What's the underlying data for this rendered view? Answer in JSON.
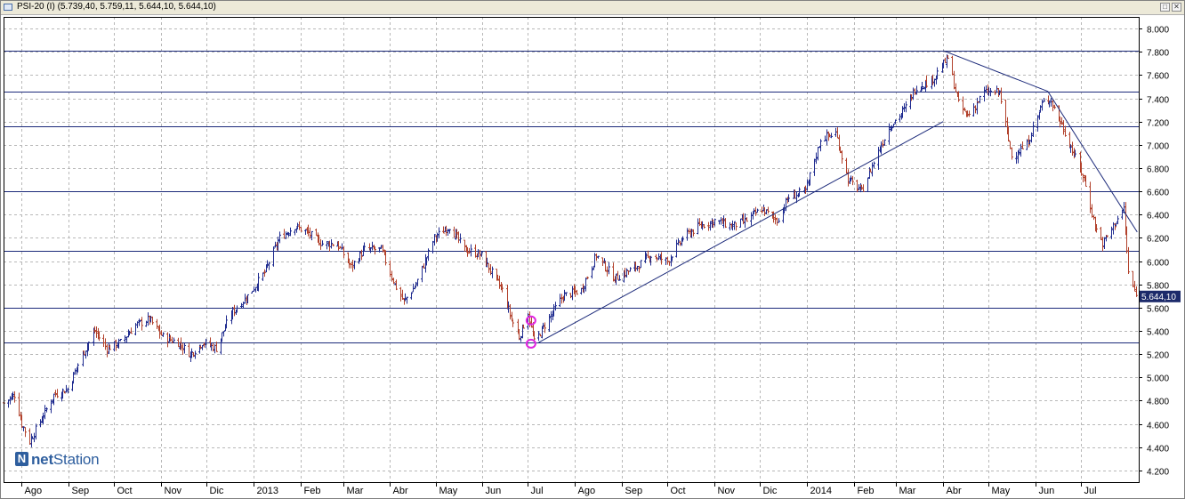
{
  "window": {
    "title": "PSI-20 (I) (5.739,40, 5.759,11, 5.644,10, 5.644,10)",
    "restore_glyph": "□",
    "close_glyph": "✕"
  },
  "logo": {
    "prefix": "net",
    "suffix": "Station"
  },
  "colors": {
    "grid": "#b8b8b8",
    "trend": "#1c2a7a",
    "bar_up": "#1f2b8f",
    "bar_down": "#b2412b",
    "marker": "#e024e0",
    "frame": "#000000"
  },
  "chart_data": {
    "type": "ohlc",
    "title": "PSI-20 (I)",
    "last_value_label": "5.644,10",
    "y_axis": {
      "min": 4100,
      "max": 8100,
      "ticks": [
        4200,
        4400,
        4600,
        4800,
        5000,
        5200,
        5400,
        5600,
        5800,
        6000,
        6200,
        6400,
        6600,
        6800,
        7000,
        7200,
        7400,
        7600,
        7800,
        8000
      ],
      "tick_labels": [
        "4.200",
        "4.400",
        "4.600",
        "4.800",
        "5.000",
        "5.200",
        "5.400",
        "5.600",
        "5.800",
        "6.000",
        "6.200",
        "6.400",
        "6.600",
        "6.800",
        "7.000",
        "7.200",
        "7.400",
        "7.600",
        "7.800",
        "8.000"
      ]
    },
    "x_axis": {
      "start": "2012-07-20",
      "end": "2014-08-08",
      "months": [
        {
          "label": "Ago",
          "date": "2012-08-01"
        },
        {
          "label": "Sep",
          "date": "2012-09-01"
        },
        {
          "label": "Oct",
          "date": "2012-10-01"
        },
        {
          "label": "Nov",
          "date": "2012-11-01"
        },
        {
          "label": "Dic",
          "date": "2012-12-01"
        },
        {
          "label": "2013",
          "date": "2013-01-01"
        },
        {
          "label": "Feb",
          "date": "2013-02-01"
        },
        {
          "label": "Mar",
          "date": "2013-03-01"
        },
        {
          "label": "Abr",
          "date": "2013-04-01"
        },
        {
          "label": "May",
          "date": "2013-05-01"
        },
        {
          "label": "Jun",
          "date": "2013-06-01"
        },
        {
          "label": "Jul",
          "date": "2013-07-01"
        },
        {
          "label": "Ago",
          "date": "2013-08-01"
        },
        {
          "label": "Sep",
          "date": "2013-09-01"
        },
        {
          "label": "Oct",
          "date": "2013-10-01"
        },
        {
          "label": "Nov",
          "date": "2013-11-01"
        },
        {
          "label": "Dic",
          "date": "2013-12-01"
        },
        {
          "label": "2014",
          "date": "2014-01-01"
        },
        {
          "label": "Feb",
          "date": "2014-02-01"
        },
        {
          "label": "Mar",
          "date": "2014-03-01"
        },
        {
          "label": "Abr",
          "date": "2014-04-01"
        },
        {
          "label": "May",
          "date": "2014-05-01"
        },
        {
          "label": "Jun",
          "date": "2014-06-01"
        },
        {
          "label": "Jul",
          "date": "2014-07-01"
        }
      ]
    },
    "close_path": [
      [
        "2012-07-20",
        4780
      ],
      [
        "2012-07-27",
        4850
      ],
      [
        "2012-08-01",
        4600
      ],
      [
        "2012-08-06",
        4450
      ],
      [
        "2012-08-14",
        4650
      ],
      [
        "2012-08-22",
        4850
      ],
      [
        "2012-08-31",
        4900
      ],
      [
        "2012-09-10",
        5200
      ],
      [
        "2012-09-18",
        5400
      ],
      [
        "2012-09-26",
        5250
      ],
      [
        "2012-10-05",
        5300
      ],
      [
        "2012-10-15",
        5450
      ],
      [
        "2012-10-24",
        5500
      ],
      [
        "2012-11-02",
        5350
      ],
      [
        "2012-11-12",
        5300
      ],
      [
        "2012-11-20",
        5200
      ],
      [
        "2012-11-28",
        5300
      ],
      [
        "2012-12-07",
        5250
      ],
      [
        "2012-12-17",
        5550
      ],
      [
        "2012-12-28",
        5700
      ],
      [
        "2013-01-08",
        5900
      ],
      [
        "2013-01-18",
        6200
      ],
      [
        "2013-01-28",
        6300
      ],
      [
        "2013-02-05",
        6250
      ],
      [
        "2013-02-15",
        6150
      ],
      [
        "2013-02-25",
        6150
      ],
      [
        "2013-03-06",
        5950
      ],
      [
        "2013-03-15",
        6100
      ],
      [
        "2013-03-26",
        6100
      ],
      [
        "2013-04-04",
        5800
      ],
      [
        "2013-04-10",
        5650
      ],
      [
        "2013-04-18",
        5800
      ],
      [
        "2013-04-30",
        6200
      ],
      [
        "2013-05-10",
        6300
      ],
      [
        "2013-05-20",
        6100
      ],
      [
        "2013-05-31",
        6050
      ],
      [
        "2013-06-07",
        5900
      ],
      [
        "2013-06-14",
        5750
      ],
      [
        "2013-06-20",
        5500
      ],
      [
        "2013-06-25",
        5350
      ],
      [
        "2013-07-01",
        5550
      ],
      [
        "2013-07-05",
        5300
      ],
      [
        "2013-07-12",
        5450
      ],
      [
        "2013-07-24",
        5700
      ],
      [
        "2013-08-05",
        5750
      ],
      [
        "2013-08-15",
        6050
      ],
      [
        "2013-08-27",
        5850
      ],
      [
        "2013-09-10",
        5950
      ],
      [
        "2013-09-20",
        6050
      ],
      [
        "2013-10-01",
        6000
      ],
      [
        "2013-10-11",
        6200
      ],
      [
        "2013-10-22",
        6300
      ],
      [
        "2013-11-01",
        6350
      ],
      [
        "2013-11-12",
        6300
      ],
      [
        "2013-11-22",
        6350
      ],
      [
        "2013-12-02",
        6450
      ],
      [
        "2013-12-12",
        6350
      ],
      [
        "2013-12-20",
        6550
      ],
      [
        "2013-12-31",
        6600
      ],
      [
        "2014-01-10",
        7050
      ],
      [
        "2014-01-20",
        7100
      ],
      [
        "2014-01-28",
        6700
      ],
      [
        "2014-02-06",
        6600
      ],
      [
        "2014-02-14",
        6850
      ],
      [
        "2014-02-24",
        7150
      ],
      [
        "2014-03-06",
        7300
      ],
      [
        "2014-03-14",
        7500
      ],
      [
        "2014-03-24",
        7550
      ],
      [
        "2014-04-04",
        7750
      ],
      [
        "2014-04-11",
        7350
      ],
      [
        "2014-04-17",
        7250
      ],
      [
        "2014-04-28",
        7450
      ],
      [
        "2014-05-08",
        7450
      ],
      [
        "2014-05-16",
        6900
      ],
      [
        "2014-05-26",
        7000
      ],
      [
        "2014-06-05",
        7350
      ],
      [
        "2014-06-10",
        7400
      ],
      [
        "2014-06-17",
        7200
      ],
      [
        "2014-06-25",
        6950
      ],
      [
        "2014-07-03",
        6700
      ],
      [
        "2014-07-10",
        6300
      ],
      [
        "2014-07-15",
        6150
      ],
      [
        "2014-07-22",
        6300
      ],
      [
        "2014-07-29",
        6450
      ],
      [
        "2014-08-01",
        5900
      ],
      [
        "2014-08-06",
        5700
      ]
    ],
    "horizontal_levels": [
      5300,
      5600,
      6090,
      6600,
      7160,
      7460,
      7810
    ],
    "trendlines": [
      {
        "from": [
          "2013-07-08",
          5300
        ],
        "to": [
          "2014-04-01",
          7200
        ]
      },
      {
        "from": [
          "2014-04-01",
          7810
        ],
        "to": [
          "2014-06-09",
          7460
        ]
      },
      {
        "from": [
          "2014-06-09",
          7460
        ],
        "to": [
          "2014-08-07",
          6250
        ]
      }
    ],
    "markers": [
      {
        "date": "2013-07-03",
        "value": 5490
      },
      {
        "date": "2013-07-03",
        "value": 5290
      }
    ]
  }
}
